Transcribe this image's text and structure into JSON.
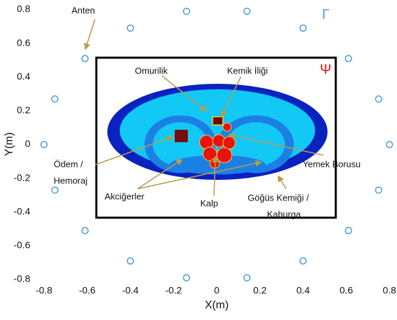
{
  "chart_data": {
    "type": "scatter",
    "xlabel": "X(m)",
    "ylabel": "Y(m)",
    "x": [
      0.8,
      0.75,
      0.61,
      0.4,
      0.14,
      -0.14,
      -0.4,
      -0.61,
      -0.75,
      -0.8,
      -0.75,
      -0.61,
      -0.4,
      -0.14,
      0.14,
      0.4,
      0.61,
      0.75
    ],
    "values": [
      0,
      0.27,
      0.51,
      0.69,
      0.79,
      0.79,
      0.69,
      0.51,
      0.27,
      0,
      -0.27,
      -0.51,
      -0.69,
      -0.79,
      -0.79,
      -0.69,
      -0.51,
      -0.27
    ],
    "color": "#4a9ad8",
    "xlim": [
      -0.8,
      0.8
    ],
    "ylim": [
      -0.8,
      0.8
    ],
    "xticks": [
      -0.8,
      -0.6,
      -0.4,
      -0.2,
      0,
      0.2,
      0.4,
      0.6,
      0.8
    ],
    "yticks": [
      -0.8,
      -0.6,
      -0.4,
      -0.2,
      0,
      0.2,
      0.4,
      0.6,
      0.8
    ],
    "annotations": [
      "Anten",
      "Γ",
      "Ψ",
      "Omurilik",
      "Kemik İliği",
      "Yemek Borusu",
      "Ödem /",
      "Hemoraj",
      "Akciğerler",
      "Kalp",
      "Göğüs Kemiği /",
      "Kaburga"
    ]
  }
}
